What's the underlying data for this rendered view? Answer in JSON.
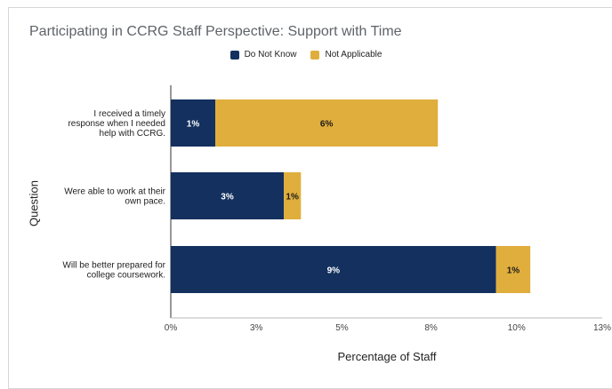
{
  "chart_data": {
    "type": "bar",
    "orientation": "horizontal",
    "stacked": true,
    "title": "Participating in CCRG Staff Perspective: Support with Time",
    "xlabel": "Percentage of Staff",
    "ylabel": "Question",
    "categories": [
      [
        "I received a timely",
        "response when I needed",
        "help with CCRG."
      ],
      [
        "Were able to work at their",
        "own pace."
      ],
      [
        "Will be better prepared for",
        "college coursework."
      ]
    ],
    "series": [
      {
        "name": "Do Not Know",
        "color": "#13305e",
        "label_color": "#ffffff",
        "values": [
          1.3,
          3.3,
          9.5
        ],
        "labels": [
          "1%",
          "3%",
          "9%"
        ]
      },
      {
        "name": "Not Applicable",
        "color": "#e0ae3c",
        "label_color": "#1a1a1a",
        "values": [
          6.5,
          0.5,
          1.0
        ],
        "labels": [
          "6%",
          "1%",
          "1%"
        ]
      }
    ],
    "xlim": [
      0,
      12.6
    ],
    "xticks": [
      0,
      2.5,
      5,
      7.6,
      10.1,
      12.6
    ],
    "xtick_labels": [
      "0%",
      "3%",
      "5%",
      "8%",
      "10%",
      "13%"
    ],
    "grid": false,
    "legend_position": "top"
  }
}
